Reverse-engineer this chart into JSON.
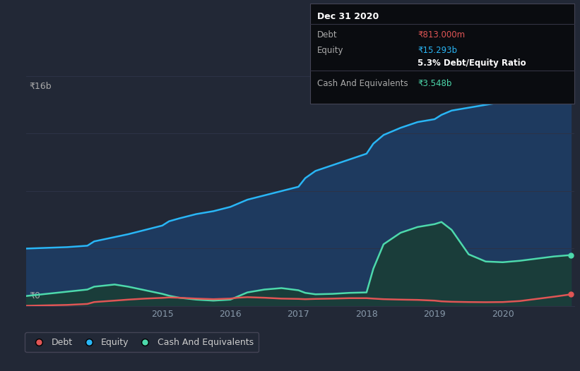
{
  "background_color": "#222836",
  "plot_bg_color": "#222836",
  "grid_color": "#2d3347",
  "y_label": "₹16b",
  "y_zero_label": "₹0",
  "x_ticks": [
    2015,
    2016,
    2017,
    2018,
    2019,
    2020
  ],
  "debt_color": "#e05555",
  "equity_color": "#29b6f6",
  "cash_color": "#4dd9ac",
  "equity_fill": "#1e3a5f",
  "cash_fill": "#1a3d3a",
  "x": [
    2013.0,
    2013.3,
    2013.6,
    2013.9,
    2014.0,
    2014.3,
    2014.5,
    2014.75,
    2015.0,
    2015.1,
    2015.25,
    2015.5,
    2015.75,
    2016.0,
    2016.1,
    2016.25,
    2016.5,
    2016.75,
    2017.0,
    2017.1,
    2017.25,
    2017.5,
    2017.75,
    2018.0,
    2018.1,
    2018.25,
    2018.5,
    2018.75,
    2019.0,
    2019.1,
    2019.25,
    2019.5,
    2019.75,
    2020.0,
    2020.25,
    2020.5,
    2020.75,
    2021.0
  ],
  "equity": [
    4.0,
    4.05,
    4.1,
    4.2,
    4.5,
    4.8,
    5.0,
    5.3,
    5.6,
    5.9,
    6.1,
    6.4,
    6.6,
    6.9,
    7.1,
    7.4,
    7.7,
    8.0,
    8.3,
    8.9,
    9.4,
    9.8,
    10.2,
    10.6,
    11.3,
    11.9,
    12.4,
    12.8,
    13.0,
    13.3,
    13.6,
    13.8,
    14.0,
    14.2,
    14.5,
    14.8,
    15.1,
    15.293
  ],
  "debt": [
    0.02,
    0.05,
    0.08,
    0.15,
    0.28,
    0.38,
    0.45,
    0.52,
    0.57,
    0.6,
    0.58,
    0.52,
    0.48,
    0.52,
    0.58,
    0.62,
    0.58,
    0.52,
    0.5,
    0.48,
    0.5,
    0.52,
    0.55,
    0.55,
    0.52,
    0.48,
    0.45,
    0.43,
    0.38,
    0.33,
    0.3,
    0.28,
    0.27,
    0.28,
    0.35,
    0.5,
    0.65,
    0.813
  ],
  "cash": [
    0.7,
    0.85,
    1.0,
    1.15,
    1.35,
    1.5,
    1.35,
    1.1,
    0.85,
    0.72,
    0.58,
    0.45,
    0.38,
    0.45,
    0.65,
    0.95,
    1.15,
    1.25,
    1.1,
    0.92,
    0.82,
    0.85,
    0.92,
    0.95,
    2.6,
    4.3,
    5.1,
    5.5,
    5.7,
    5.85,
    5.3,
    3.6,
    3.1,
    3.05,
    3.15,
    3.3,
    3.45,
    3.548
  ],
  "ylim": [
    0,
    16
  ],
  "xlim": [
    2013.0,
    2021.05
  ],
  "legend_items": [
    "Debt",
    "Equity",
    "Cash And Equivalents"
  ],
  "legend_colors": [
    "#e05555",
    "#29b6f6",
    "#4dd9ac"
  ],
  "tooltip_title": "Dec 31 2020",
  "tooltip_debt_label": "Debt",
  "tooltip_equity_label": "Equity",
  "tooltip_cash_label": "Cash And Equivalents",
  "tooltip_debt": "₹813.000m",
  "tooltip_equity": "₹15.293b",
  "tooltip_ratio": "5.3%",
  "tooltip_ratio_label": "Debt/Equity Ratio",
  "tooltip_cash": "₹3.548b",
  "tooltip_debt_color": "#e05555",
  "tooltip_equity_color": "#29b6f6",
  "tooltip_cash_color": "#4dd9ac"
}
